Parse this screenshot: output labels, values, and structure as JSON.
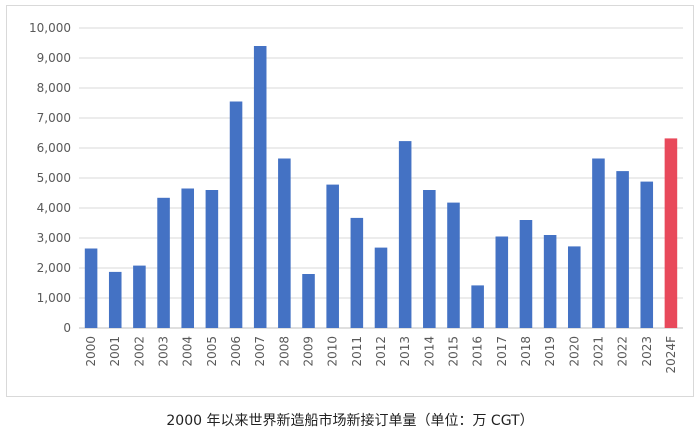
{
  "caption": "2000 年以来世界新造船市场新接订单量（单位：万 CGT）",
  "chart_data": {
    "type": "bar",
    "title": "",
    "xlabel": "",
    "ylabel": "",
    "ylim": [
      0,
      10000
    ],
    "yticks": [
      0,
      1000,
      2000,
      3000,
      4000,
      5000,
      6000,
      7000,
      8000,
      9000,
      10000
    ],
    "ytick_labels": [
      "0",
      "1,000",
      "2,000",
      "3,000",
      "4,000",
      "5,000",
      "6,000",
      "7,000",
      "8,000",
      "9,000",
      "10,000"
    ],
    "grid": true,
    "legend": "none",
    "categories": [
      "2000",
      "2001",
      "2002",
      "2003",
      "2004",
      "2005",
      "2006",
      "2007",
      "2008",
      "2009",
      "2010",
      "2011",
      "2012",
      "2013",
      "2014",
      "2015",
      "2016",
      "2017",
      "2018",
      "2019",
      "2020",
      "2021",
      "2022",
      "2023",
      "2024F"
    ],
    "values": [
      2650,
      1870,
      2080,
      4340,
      4650,
      4600,
      7550,
      9400,
      5650,
      1800,
      4780,
      3670,
      2680,
      6230,
      4600,
      4180,
      1420,
      3050,
      3600,
      3100,
      2720,
      5650,
      5230,
      4880,
      6320
    ],
    "colors": {
      "default": "#4472c4",
      "highlight": "#e8495b",
      "highlight_category": "2024F",
      "grid": "#d9d9d9",
      "axis": "#bfbfbf"
    }
  }
}
